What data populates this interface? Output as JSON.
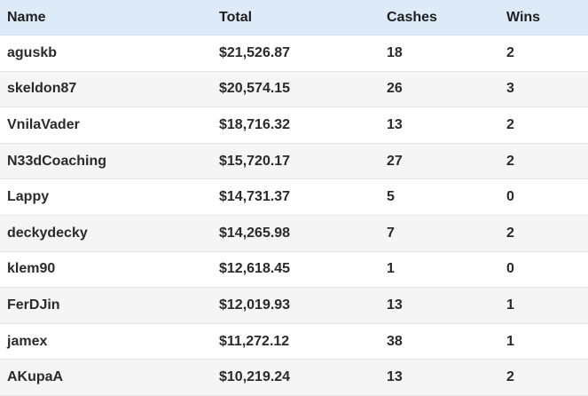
{
  "table": {
    "columns": [
      "Name",
      "Total",
      "Cashes",
      "Wins"
    ],
    "rows": [
      {
        "name": "aguskb",
        "total": "$21,526.87",
        "cashes": "18",
        "wins": "2"
      },
      {
        "name": "skeldon87",
        "total": "$20,574.15",
        "cashes": "26",
        "wins": "3"
      },
      {
        "name": "VnilaVader",
        "total": "$18,716.32",
        "cashes": "13",
        "wins": "2"
      },
      {
        "name": "N33dCoaching",
        "total": "$15,720.17",
        "cashes": "27",
        "wins": "2"
      },
      {
        "name": "Lappy",
        "total": "$14,731.37",
        "cashes": "5",
        "wins": "0"
      },
      {
        "name": "deckydecky",
        "total": "$14,265.98",
        "cashes": "7",
        "wins": "2"
      },
      {
        "name": "klem90",
        "total": "$12,618.45",
        "cashes": "1",
        "wins": "0"
      },
      {
        "name": "FerDJin",
        "total": "$12,019.93",
        "cashes": "13",
        "wins": "1"
      },
      {
        "name": "jamex",
        "total": "$11,272.12",
        "cashes": "38",
        "wins": "1"
      },
      {
        "name": "AKupaA",
        "total": "$10,219.24",
        "cashes": "13",
        "wins": "2"
      }
    ]
  },
  "colors": {
    "header_bg": "#dcebf7",
    "alt_row_bg": "#f5f5f5",
    "row_bg": "#ffffff"
  }
}
